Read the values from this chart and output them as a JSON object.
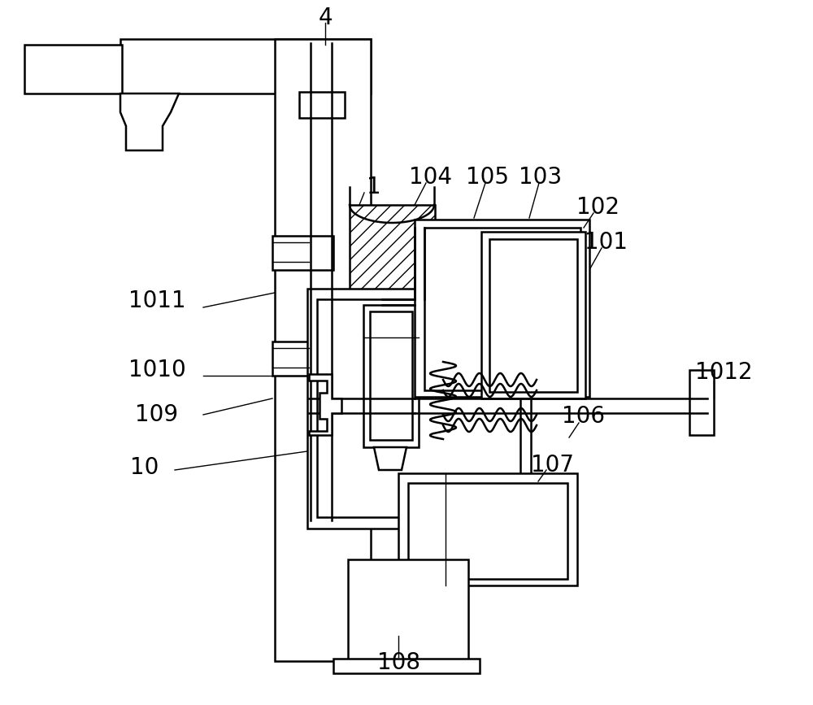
{
  "bg_color": "#ffffff",
  "figsize": [
    10.0,
    8.67
  ],
  "dpi": 100
}
